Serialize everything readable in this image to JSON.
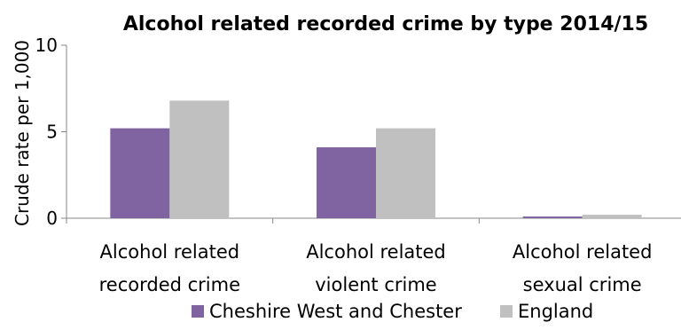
{
  "chart_data": {
    "type": "bar",
    "title": "Alcohol related recorded crime by type 2014/15",
    "xlabel": "",
    "ylabel": "Crude rate per 1,000",
    "ylim": [
      0,
      10
    ],
    "yticks": [
      "0",
      "5",
      "10"
    ],
    "categories": [
      [
        "Alcohol related",
        "recorded crime"
      ],
      [
        "Alcohol related",
        "violent crime"
      ],
      [
        "Alcohol related",
        "sexual crime"
      ]
    ],
    "series": [
      {
        "name": "Cheshire West and Chester",
        "color": "#8064a2",
        "values": [
          5.2,
          4.1,
          0.1
        ]
      },
      {
        "name": "England",
        "color": "#c0c0c0",
        "values": [
          6.8,
          5.2,
          0.2
        ]
      }
    ],
    "grid": false,
    "legend_position": "bottom"
  }
}
